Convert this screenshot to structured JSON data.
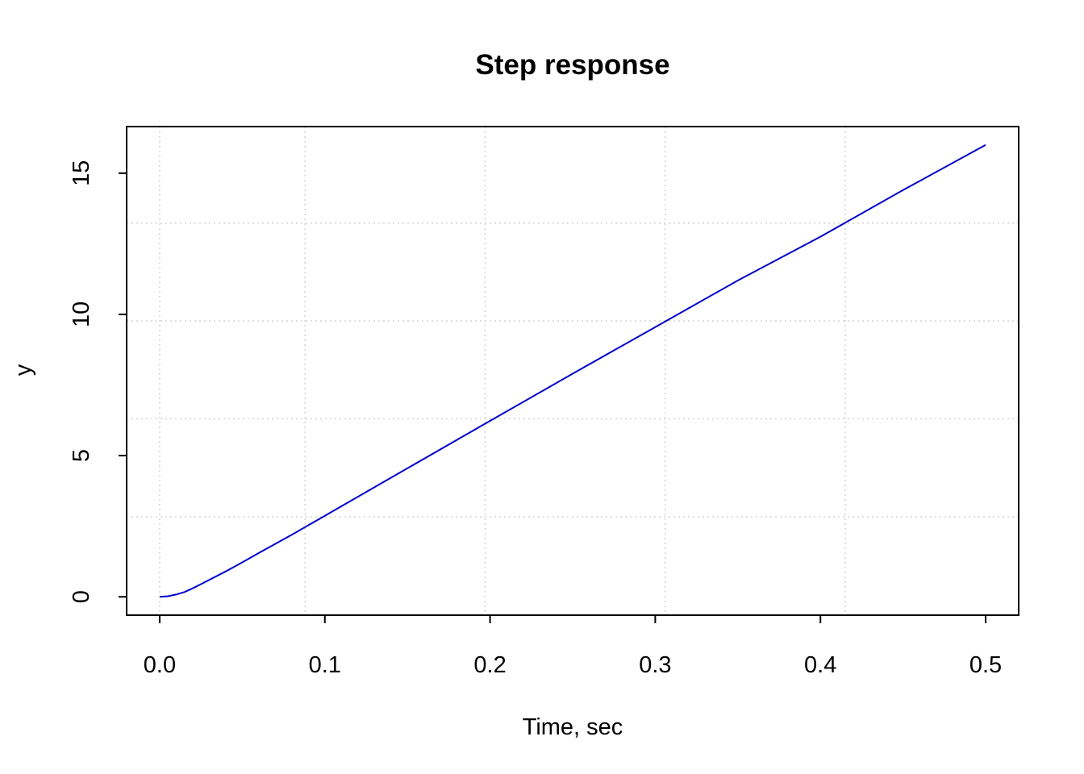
{
  "chart_data": {
    "type": "line",
    "title": "Step response",
    "xlabel": "Time, sec",
    "ylabel": "y",
    "xlim": [
      -0.02,
      0.52
    ],
    "ylim": [
      -0.65,
      16.65
    ],
    "x_ticks": [
      0.0,
      0.1,
      0.2,
      0.3,
      0.4,
      0.5
    ],
    "x_tick_labels": [
      "0.0",
      "0.1",
      "0.2",
      "0.3",
      "0.4",
      "0.5"
    ],
    "y_ticks": [
      0,
      5,
      10,
      15
    ],
    "y_tick_labels": [
      "0",
      "5",
      "10",
      "15"
    ],
    "x_grid": [
      0.0,
      0.088,
      0.197,
      0.306,
      0.415
    ],
    "y_grid": [
      2.83,
      6.3,
      9.77,
      13.23
    ],
    "grid": true,
    "line_color": "#0000cc",
    "grid_color": "#d3d3d3",
    "series": [
      {
        "x": [
          0.0,
          0.005,
          0.01,
          0.015,
          0.02,
          0.025,
          0.03,
          0.04,
          0.05,
          0.06,
          0.08,
          0.1,
          0.15,
          0.2,
          0.25,
          0.3,
          0.35,
          0.4,
          0.45,
          0.5
        ],
        "values": [
          0.0,
          0.02,
          0.08,
          0.17,
          0.3,
          0.45,
          0.6,
          0.9,
          1.22,
          1.55,
          2.2,
          2.87,
          4.55,
          6.23,
          7.9,
          9.55,
          11.2,
          12.75,
          14.4,
          16.0
        ]
      }
    ]
  }
}
